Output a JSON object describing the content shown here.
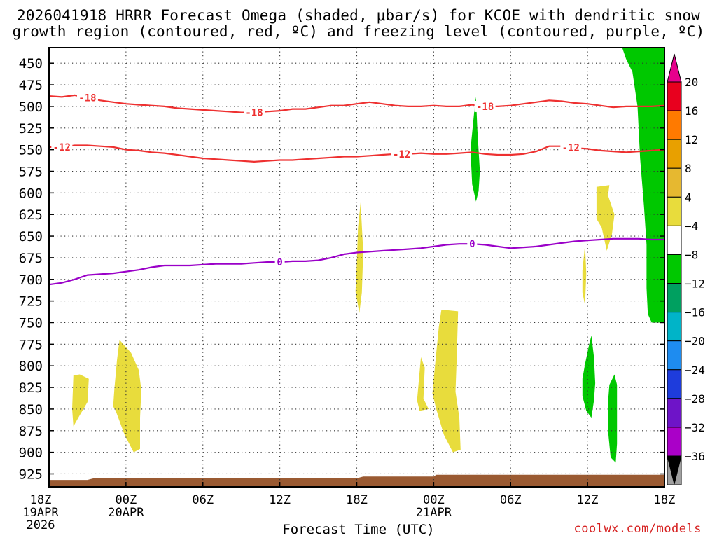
{
  "title_line1": "2026041918 HRRR Forecast Omega (shaded, μbar/s) for KCOE with dendritic snow",
  "title_line2": "growth region (contoured, red, ºC) and freezing level (contoured, purple, ºC)",
  "credit": "coolwx.com/models",
  "chart_data": {
    "type": "time-height cross section",
    "xlabel": "Forecast Time (UTC)",
    "ylabel": "",
    "x_ticks": [
      {
        "t": 0,
        "lines": [
          "18Z",
          "19APR",
          "2026"
        ]
      },
      {
        "t": 6,
        "lines": [
          "00Z",
          "20APR"
        ]
      },
      {
        "t": 12,
        "lines": [
          "06Z"
        ]
      },
      {
        "t": 18,
        "lines": [
          "12Z"
        ]
      },
      {
        "t": 24,
        "lines": [
          "18Z"
        ]
      },
      {
        "t": 30,
        "lines": [
          "00Z",
          "21APR"
        ]
      },
      {
        "t": 36,
        "lines": [
          "06Z"
        ]
      },
      {
        "t": 42,
        "lines": [
          "12Z"
        ]
      },
      {
        "t": 48,
        "lines": [
          "18Z"
        ]
      }
    ],
    "xlim_hours": [
      0,
      48
    ],
    "y_ticks_hPa": [
      450,
      475,
      500,
      525,
      550,
      575,
      600,
      625,
      650,
      675,
      700,
      725,
      750,
      775,
      800,
      825,
      850,
      875,
      900,
      925
    ],
    "ylim_hPa": [
      432,
      940
    ],
    "grid": true,
    "colorbar": {
      "labels": [
        20,
        16,
        12,
        8,
        4,
        -4,
        -8,
        -12,
        -16,
        -20,
        -24,
        -28,
        -32,
        -36
      ],
      "colors": [
        "#e8001e",
        "#ff7a00",
        "#e8a000",
        "#e6b830",
        "#e8dc3c",
        "#ffffff",
        "#00c800",
        "#00a060",
        "#00b4c8",
        "#1e8cf0",
        "#1e3cdc",
        "#6e14c8",
        "#aa00c8",
        "#a0a0a0"
      ],
      "top_arrow_color": "#e6008c",
      "bottom_arrow_color": "#000000"
    },
    "dgz_contours_C": [
      {
        "label": "-18",
        "color": "#ee3030",
        "points": [
          [
            0,
            488
          ],
          [
            1,
            489
          ],
          [
            2,
            487
          ],
          [
            3,
            490
          ],
          [
            4,
            493
          ],
          [
            5,
            495
          ],
          [
            6,
            497
          ],
          [
            7,
            498
          ],
          [
            8,
            499
          ],
          [
            9,
            500
          ],
          [
            10,
            502
          ],
          [
            11,
            503
          ],
          [
            12,
            504
          ],
          [
            13,
            505
          ],
          [
            14,
            506
          ],
          [
            15,
            507
          ],
          [
            16,
            507
          ],
          [
            17,
            506
          ],
          [
            18,
            505
          ],
          [
            19,
            503
          ],
          [
            20,
            503
          ],
          [
            21,
            501
          ],
          [
            22,
            499
          ],
          [
            23,
            499
          ],
          [
            24,
            497
          ],
          [
            25,
            495
          ],
          [
            26,
            497
          ],
          [
            27,
            499
          ],
          [
            28,
            500
          ],
          [
            29,
            500
          ],
          [
            30,
            499
          ],
          [
            31,
            500
          ],
          [
            32,
            500
          ],
          [
            33,
            498
          ],
          [
            34,
            500
          ],
          [
            35,
            500
          ],
          [
            36,
            499
          ],
          [
            37,
            497
          ],
          [
            38,
            495
          ],
          [
            39,
            493
          ],
          [
            40,
            494
          ],
          [
            41,
            496
          ],
          [
            42,
            497
          ],
          [
            43,
            499
          ],
          [
            44,
            501
          ],
          [
            45,
            500
          ],
          [
            46,
            500
          ],
          [
            47,
            500
          ],
          [
            48,
            499
          ]
        ],
        "labels_at": [
          3,
          16,
          34
        ]
      },
      {
        "label": "-12",
        "color": "#ee3030",
        "points": [
          [
            0,
            547
          ],
          [
            1,
            547
          ],
          [
            2,
            545
          ],
          [
            3,
            545
          ],
          [
            4,
            546
          ],
          [
            5,
            547
          ],
          [
            6,
            550
          ],
          [
            7,
            551
          ],
          [
            8,
            553
          ],
          [
            9,
            554
          ],
          [
            10,
            556
          ],
          [
            11,
            558
          ],
          [
            12,
            560
          ],
          [
            13,
            561
          ],
          [
            14,
            562
          ],
          [
            15,
            563
          ],
          [
            16,
            564
          ],
          [
            17,
            563
          ],
          [
            18,
            562
          ],
          [
            19,
            562
          ],
          [
            20,
            561
          ],
          [
            21,
            560
          ],
          [
            22,
            559
          ],
          [
            23,
            558
          ],
          [
            24,
            558
          ],
          [
            25,
            557
          ],
          [
            26,
            556
          ],
          [
            27,
            555
          ],
          [
            28,
            555
          ],
          [
            29,
            554
          ],
          [
            30,
            555
          ],
          [
            31,
            555
          ],
          [
            32,
            554
          ],
          [
            33,
            553
          ],
          [
            34,
            555
          ],
          [
            35,
            556
          ],
          [
            36,
            556
          ],
          [
            37,
            555
          ],
          [
            38,
            552
          ],
          [
            39,
            546
          ],
          [
            40,
            546
          ],
          [
            41,
            548
          ],
          [
            42,
            549
          ],
          [
            43,
            551
          ],
          [
            44,
            552
          ],
          [
            45,
            553
          ],
          [
            46,
            552
          ],
          [
            47,
            551
          ],
          [
            48,
            550
          ]
        ],
        "labels_at": [
          1,
          27.5,
          40.7
        ]
      }
    ],
    "freezing_level": {
      "label": "0",
      "color": "#9a00c8",
      "points": [
        [
          0,
          706
        ],
        [
          1,
          704
        ],
        [
          2,
          700
        ],
        [
          3,
          695
        ],
        [
          4,
          694
        ],
        [
          5,
          693
        ],
        [
          6,
          691
        ],
        [
          7,
          689
        ],
        [
          8,
          686
        ],
        [
          9,
          684
        ],
        [
          10,
          684
        ],
        [
          11,
          684
        ],
        [
          12,
          683
        ],
        [
          13,
          682
        ],
        [
          14,
          682
        ],
        [
          15,
          682
        ],
        [
          16,
          681
        ],
        [
          17,
          680
        ],
        [
          18,
          680
        ],
        [
          19,
          679
        ],
        [
          20,
          679
        ],
        [
          21,
          678
        ],
        [
          22,
          675
        ],
        [
          23,
          671
        ],
        [
          24,
          669
        ],
        [
          25,
          668
        ],
        [
          26,
          667
        ],
        [
          27,
          666
        ],
        [
          28,
          665
        ],
        [
          29,
          664
        ],
        [
          30,
          662
        ],
        [
          31,
          660
        ],
        [
          32,
          659
        ],
        [
          33,
          659
        ],
        [
          34,
          660
        ],
        [
          35,
          662
        ],
        [
          36,
          664
        ],
        [
          37,
          663
        ],
        [
          38,
          662
        ],
        [
          39,
          660
        ],
        [
          40,
          658
        ],
        [
          41,
          656
        ],
        [
          42,
          655
        ],
        [
          43,
          654
        ],
        [
          44,
          653
        ],
        [
          45,
          653
        ],
        [
          46,
          653
        ],
        [
          47,
          654
        ],
        [
          48,
          654
        ]
      ],
      "labels_at": [
        18,
        33
      ]
    },
    "omega_shading": [
      {
        "color": "#e8dc3c",
        "points": [
          [
            1.9,
            811
          ],
          [
            2.4,
            810
          ],
          [
            3.1,
            815
          ],
          [
            3.0,
            842
          ],
          [
            2.4,
            857
          ],
          [
            1.9,
            870
          ],
          [
            1.8,
            850
          ]
        ]
      },
      {
        "color": "#e8dc3c",
        "points": [
          [
            5.0,
            847
          ],
          [
            5.1,
            826
          ],
          [
            5.3,
            793
          ],
          [
            5.5,
            770
          ],
          [
            6.4,
            785
          ],
          [
            7.0,
            805
          ],
          [
            7.2,
            828
          ],
          [
            7.1,
            860
          ],
          [
            7.1,
            896
          ],
          [
            6.6,
            900
          ],
          [
            5.9,
            880
          ],
          [
            5.2,
            852
          ]
        ]
      },
      {
        "color": "#e8dc3c",
        "points": [
          [
            24.0,
            683
          ],
          [
            24.1,
            640
          ],
          [
            24.3,
            611
          ],
          [
            24.5,
            668
          ],
          [
            24.4,
            715
          ],
          [
            24.2,
            739
          ],
          [
            23.9,
            714
          ]
        ]
      },
      {
        "color": "#e8dc3c",
        "points": [
          [
            28.7,
            840
          ],
          [
            29.0,
            790
          ],
          [
            29.3,
            802
          ],
          [
            29.2,
            838
          ],
          [
            29.6,
            850
          ],
          [
            28.9,
            852
          ]
        ]
      },
      {
        "color": "#e8dc3c",
        "points": [
          [
            29.9,
            832
          ],
          [
            30.1,
            800
          ],
          [
            30.4,
            755
          ],
          [
            30.6,
            735
          ],
          [
            31.9,
            737
          ],
          [
            31.8,
            790
          ],
          [
            31.7,
            830
          ],
          [
            32.0,
            860
          ],
          [
            32.1,
            897
          ],
          [
            31.5,
            900
          ],
          [
            30.8,
            880
          ],
          [
            30.2,
            850
          ]
        ]
      },
      {
        "color": "#00c800",
        "points": [
          [
            32.9,
            545
          ],
          [
            33.2,
            500
          ],
          [
            33.3,
            489
          ],
          [
            33.4,
            525
          ],
          [
            33.6,
            575
          ],
          [
            33.5,
            598
          ],
          [
            33.3,
            610
          ],
          [
            33.0,
            590
          ],
          [
            32.9,
            560
          ]
        ]
      },
      {
        "color": "#e8dc3c",
        "points": [
          [
            42.7,
            593
          ],
          [
            43.7,
            591
          ],
          [
            43.6,
            603
          ],
          [
            44.1,
            625
          ],
          [
            43.9,
            648
          ],
          [
            43.5,
            667
          ],
          [
            43.1,
            640
          ],
          [
            42.7,
            630
          ]
        ]
      },
      {
        "color": "#e8dc3c",
        "points": [
          [
            41.6,
            690
          ],
          [
            41.8,
            660
          ],
          [
            41.9,
            693
          ],
          [
            41.8,
            730
          ],
          [
            41.6,
            715
          ]
        ]
      },
      {
        "color": "#00c800",
        "points": [
          [
            41.6,
            815
          ],
          [
            41.8,
            798
          ],
          [
            42.1,
            777
          ],
          [
            42.3,
            765
          ],
          [
            42.5,
            790
          ],
          [
            42.6,
            820
          ],
          [
            42.5,
            840
          ],
          [
            42.3,
            860
          ],
          [
            41.9,
            852
          ],
          [
            41.6,
            835
          ]
        ]
      },
      {
        "color": "#00c800",
        "points": [
          [
            43.6,
            842
          ],
          [
            43.7,
            822
          ],
          [
            44.1,
            810
          ],
          [
            44.3,
            822
          ],
          [
            44.3,
            852
          ],
          [
            44.3,
            890
          ],
          [
            44.2,
            912
          ],
          [
            43.8,
            906
          ],
          [
            43.6,
            875
          ]
        ]
      },
      {
        "color": "#00c800",
        "points": [
          [
            44.7,
            432
          ],
          [
            48,
            432
          ],
          [
            48,
            750
          ],
          [
            47.0,
            750
          ],
          [
            46.7,
            740
          ],
          [
            46.6,
            710
          ],
          [
            46.6,
            660
          ],
          [
            46.4,
            615
          ],
          [
            46.1,
            560
          ],
          [
            45.9,
            500
          ],
          [
            45.5,
            460
          ],
          [
            45.0,
            445
          ]
        ]
      }
    ],
    "terrain_color": "#9a5a32",
    "terrain": [
      [
        0,
        932
      ],
      [
        3,
        932
      ],
      [
        3.5,
        930
      ],
      [
        24,
        930
      ],
      [
        24.5,
        928
      ],
      [
        30,
        928
      ],
      [
        30.2,
        926
      ],
      [
        48,
        926
      ]
    ]
  }
}
